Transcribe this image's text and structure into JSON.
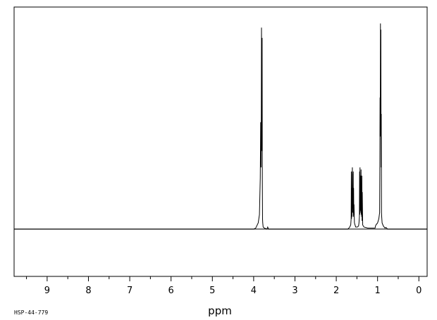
{
  "spectrum_code": "HSP-44-779",
  "chart_data": {
    "type": "line",
    "title": "",
    "xlabel": "ppm",
    "ylabel": "",
    "xlim": [
      9.8,
      -0.2
    ],
    "x_reversed": true,
    "ylim": [
      -0.23,
      1.08
    ],
    "grid": false,
    "x_ticks": [
      9,
      8,
      7,
      6,
      5,
      4,
      3,
      2,
      1,
      0
    ],
    "tick_labels": [
      "9",
      "8",
      "7",
      "6",
      "5",
      "4",
      "3",
      "2",
      "1",
      "0"
    ],
    "minor_step": 0.5,
    "series": [
      {
        "x": [
          9.8,
          4.0,
          3.95,
          3.89,
          3.86,
          3.84,
          3.83,
          3.82,
          3.815,
          3.81,
          3.8,
          3.795,
          3.79,
          3.785,
          3.78,
          3.77,
          3.74,
          3.68,
          3.66,
          3.64,
          3.62,
          1.72,
          1.68,
          1.65,
          1.64,
          1.635,
          1.63,
          1.625,
          1.62,
          1.61,
          1.605,
          1.6,
          1.595,
          1.59,
          1.585,
          1.58,
          1.575,
          1.57,
          1.56,
          1.53,
          1.49,
          1.46,
          1.45,
          1.44,
          1.435,
          1.43,
          1.425,
          1.42,
          1.41,
          1.405,
          1.4,
          1.395,
          1.39,
          1.385,
          1.38,
          1.375,
          1.37,
          1.36,
          1.33,
          1.24,
          1.06,
          1.05,
          1.04,
          1.0,
          0.97,
          0.95,
          0.945,
          0.94,
          0.935,
          0.93,
          0.925,
          0.92,
          0.915,
          0.91,
          0.905,
          0.9,
          0.89,
          0.86,
          0.82,
          0.8,
          0.78,
          0.76,
          -0.2
        ],
        "y": [
          0,
          0,
          0.005,
          0.03,
          0.07,
          0.25,
          0.52,
          0.3,
          0.57,
          0.98,
          0.38,
          0.93,
          0.25,
          0.05,
          0.03,
          0.01,
          0.005,
          0,
          0.01,
          0,
          0,
          0,
          0.008,
          0.02,
          0.05,
          0.28,
          0.05,
          0.2,
          0.06,
          0.3,
          0.08,
          0.27,
          0.1,
          0.28,
          0.06,
          0.2,
          0.07,
          0.12,
          0.03,
          0.01,
          0.01,
          0.015,
          0.03,
          0.06,
          0.28,
          0.07,
          0.3,
          0.09,
          0.26,
          0.08,
          0.29,
          0.07,
          0.2,
          0.06,
          0.26,
          0.04,
          0.18,
          0.02,
          0.01,
          0.005,
          0.005,
          0.015,
          0.02,
          0.03,
          0.05,
          0.08,
          0.28,
          0.64,
          0.45,
          1.0,
          0.55,
          0.97,
          0.3,
          0.56,
          0.08,
          0.06,
          0.03,
          0.015,
          0.005,
          0.008,
          0.005,
          0,
          0
        ]
      }
    ]
  }
}
